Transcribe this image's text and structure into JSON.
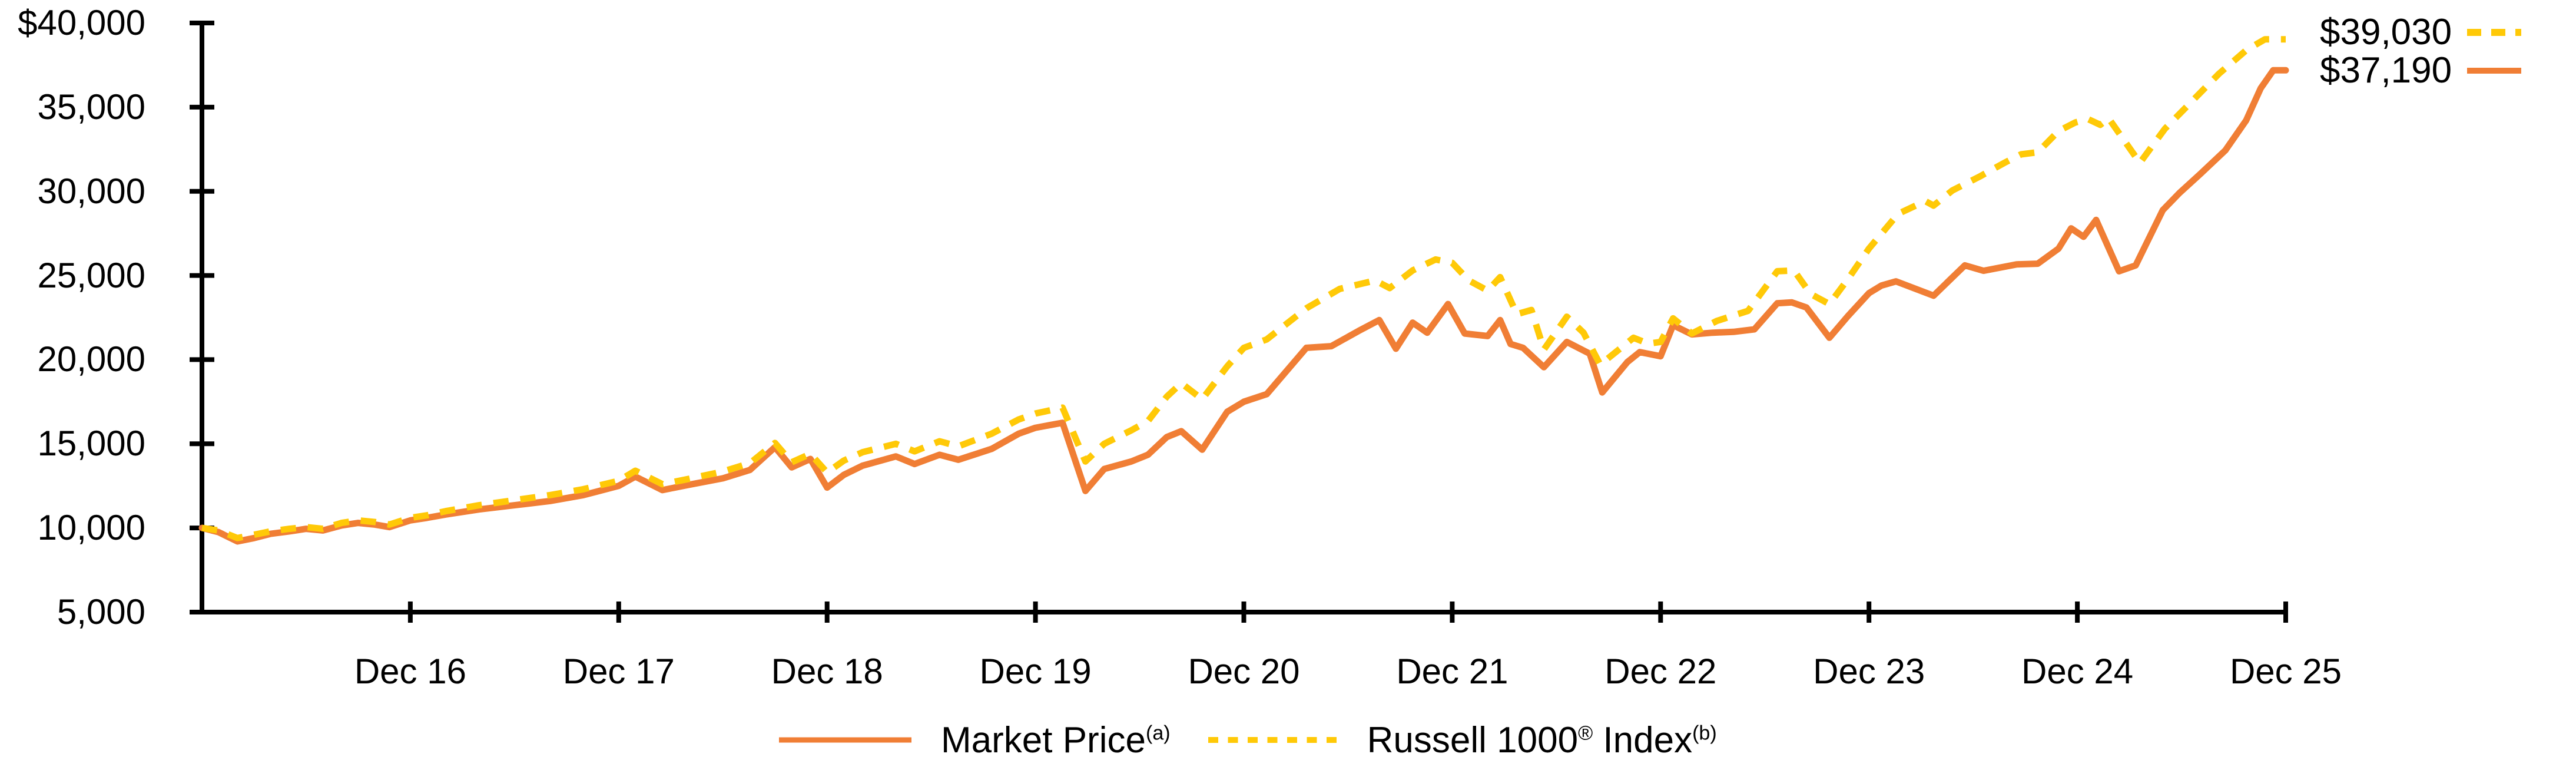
{
  "chart_data": {
    "type": "line",
    "title": "",
    "xlabel": "",
    "ylabel": "",
    "ylim": [
      5000,
      40000
    ],
    "x_range_years": [
      0,
      10
    ],
    "grid": "off",
    "legend_position": "bottom-center",
    "axis_color": "#000000",
    "y_ticks": [
      {
        "value": 40000,
        "label": "$40,000"
      },
      {
        "value": 35000,
        "label": "35,000"
      },
      {
        "value": 30000,
        "label": "30,000"
      },
      {
        "value": 25000,
        "label": "25,000"
      },
      {
        "value": 20000,
        "label": "20,000"
      },
      {
        "value": 15000,
        "label": "15,000"
      },
      {
        "value": 10000,
        "label": "10,000"
      },
      {
        "value": 5000,
        "label": "5,000"
      }
    ],
    "x_ticks": [
      {
        "t": 1,
        "label": "Dec 16"
      },
      {
        "t": 2,
        "label": "Dec 17"
      },
      {
        "t": 3,
        "label": "Dec 18"
      },
      {
        "t": 4,
        "label": "Dec 19"
      },
      {
        "t": 5,
        "label": "Dec 20"
      },
      {
        "t": 6,
        "label": "Dec 21"
      },
      {
        "t": 7,
        "label": "Dec 22"
      },
      {
        "t": 8,
        "label": "Dec 23"
      },
      {
        "t": 9,
        "label": "Dec 24"
      },
      {
        "t": 10,
        "label": "Dec 25"
      }
    ],
    "series": [
      {
        "name": "Market Price",
        "name_base": "Market Price",
        "superscript": "(a)",
        "color": "#F07E35",
        "style": "solid",
        "end_label": "$37,190",
        "end_value": 37190,
        "points": [
          [
            0,
            10000
          ],
          [
            0.08,
            9750
          ],
          [
            0.17,
            9200
          ],
          [
            0.25,
            9400
          ],
          [
            0.33,
            9650
          ],
          [
            0.42,
            9800
          ],
          [
            0.5,
            9950
          ],
          [
            0.58,
            9850
          ],
          [
            0.67,
            10150
          ],
          [
            0.75,
            10300
          ],
          [
            0.83,
            10200
          ],
          [
            0.9,
            10050
          ],
          [
            1,
            10450
          ],
          [
            1.08,
            10600
          ],
          [
            1.17,
            10800
          ],
          [
            1.33,
            11100
          ],
          [
            1.5,
            11350
          ],
          [
            1.67,
            11600
          ],
          [
            1.83,
            11950
          ],
          [
            2,
            12500
          ],
          [
            2.08,
            13050
          ],
          [
            2.21,
            12250
          ],
          [
            2.33,
            12550
          ],
          [
            2.5,
            12950
          ],
          [
            2.63,
            13450
          ],
          [
            2.75,
            14800
          ],
          [
            2.83,
            13600
          ],
          [
            2.92,
            14100
          ],
          [
            3,
            12400
          ],
          [
            3.08,
            13150
          ],
          [
            3.17,
            13700
          ],
          [
            3.33,
            14250
          ],
          [
            3.42,
            13800
          ],
          [
            3.54,
            14350
          ],
          [
            3.63,
            14050
          ],
          [
            3.79,
            14700
          ],
          [
            3.92,
            15600
          ],
          [
            4,
            15950
          ],
          [
            4.13,
            16250
          ],
          [
            4.24,
            12200
          ],
          [
            4.33,
            13500
          ],
          [
            4.46,
            13950
          ],
          [
            4.54,
            14350
          ],
          [
            4.63,
            15400
          ],
          [
            4.7,
            15750
          ],
          [
            4.8,
            14650
          ],
          [
            4.92,
            16900
          ],
          [
            5,
            17500
          ],
          [
            5.11,
            17950
          ],
          [
            5.3,
            20700
          ],
          [
            5.42,
            20800
          ],
          [
            5.55,
            21700
          ],
          [
            5.65,
            22350
          ],
          [
            5.73,
            20650
          ],
          [
            5.81,
            22200
          ],
          [
            5.88,
            21600
          ],
          [
            5.98,
            23300
          ],
          [
            6.06,
            21550
          ],
          [
            6.17,
            21400
          ],
          [
            6.23,
            22350
          ],
          [
            6.28,
            20930
          ],
          [
            6.34,
            20700
          ],
          [
            6.44,
            19550
          ],
          [
            6.55,
            21050
          ],
          [
            6.66,
            20350
          ],
          [
            6.72,
            18050
          ],
          [
            6.84,
            19850
          ],
          [
            6.9,
            20450
          ],
          [
            7,
            20200
          ],
          [
            7.06,
            22050
          ],
          [
            7.15,
            21500
          ],
          [
            7.25,
            21600
          ],
          [
            7.35,
            21650
          ],
          [
            7.45,
            21800
          ],
          [
            7.56,
            23350
          ],
          [
            7.63,
            23400
          ],
          [
            7.7,
            23100
          ],
          [
            7.81,
            21300
          ],
          [
            7.9,
            22600
          ],
          [
            8,
            23950
          ],
          [
            8.06,
            24400
          ],
          [
            8.13,
            24650
          ],
          [
            8.31,
            23800
          ],
          [
            8.46,
            25600
          ],
          [
            8.55,
            25280
          ],
          [
            8.71,
            25660
          ],
          [
            8.81,
            25700
          ],
          [
            8.91,
            26600
          ],
          [
            8.97,
            27800
          ],
          [
            9.03,
            27300
          ],
          [
            9.09,
            28300
          ],
          [
            9.2,
            25250
          ],
          [
            9.28,
            25600
          ],
          [
            9.41,
            28880
          ],
          [
            9.49,
            29900
          ],
          [
            9.59,
            31030
          ],
          [
            9.71,
            32430
          ],
          [
            9.81,
            34210
          ],
          [
            9.88,
            36120
          ],
          [
            9.94,
            37190
          ],
          [
            10,
            37190
          ]
        ]
      },
      {
        "name": "Russell 1000® Index",
        "name_base": "Russell 1000",
        "name_reg": "®",
        "name_rest": " Index",
        "superscript": "(b)",
        "color": "#FFC907",
        "style": "dashed",
        "end_label": "$39,030",
        "end_value": 39030,
        "points": [
          [
            0,
            10000
          ],
          [
            0.08,
            9850
          ],
          [
            0.17,
            9400
          ],
          [
            0.25,
            9600
          ],
          [
            0.33,
            9800
          ],
          [
            0.42,
            9950
          ],
          [
            0.5,
            10050
          ],
          [
            0.58,
            9950
          ],
          [
            0.67,
            10300
          ],
          [
            0.75,
            10450
          ],
          [
            0.83,
            10350
          ],
          [
            0.9,
            10200
          ],
          [
            1,
            10600
          ],
          [
            1.08,
            10750
          ],
          [
            1.17,
            11000
          ],
          [
            1.33,
            11350
          ],
          [
            1.5,
            11650
          ],
          [
            1.67,
            11950
          ],
          [
            1.83,
            12300
          ],
          [
            2,
            12800
          ],
          [
            2.08,
            13400
          ],
          [
            2.21,
            12600
          ],
          [
            2.33,
            12900
          ],
          [
            2.5,
            13350
          ],
          [
            2.63,
            13850
          ],
          [
            2.75,
            15050
          ],
          [
            2.83,
            13900
          ],
          [
            2.92,
            14400
          ],
          [
            3,
            13300
          ],
          [
            3.08,
            14000
          ],
          [
            3.17,
            14500
          ],
          [
            3.33,
            15000
          ],
          [
            3.42,
            14550
          ],
          [
            3.54,
            15150
          ],
          [
            3.63,
            14850
          ],
          [
            3.79,
            15600
          ],
          [
            3.92,
            16450
          ],
          [
            4,
            16800
          ],
          [
            4.13,
            17150
          ],
          [
            4.24,
            13950
          ],
          [
            4.33,
            15000
          ],
          [
            4.46,
            15800
          ],
          [
            4.54,
            16350
          ],
          [
            4.63,
            17800
          ],
          [
            4.7,
            18600
          ],
          [
            4.8,
            17650
          ],
          [
            4.92,
            19600
          ],
          [
            5,
            20700
          ],
          [
            5.11,
            21200
          ],
          [
            5.3,
            23050
          ],
          [
            5.46,
            24200
          ],
          [
            5.63,
            24700
          ],
          [
            5.7,
            24250
          ],
          [
            5.81,
            25300
          ],
          [
            5.92,
            25950
          ],
          [
            6,
            25750
          ],
          [
            6.08,
            24700
          ],
          [
            6.17,
            24100
          ],
          [
            6.23,
            24900
          ],
          [
            6.31,
            22700
          ],
          [
            6.38,
            22950
          ],
          [
            6.44,
            20600
          ],
          [
            6.55,
            22550
          ],
          [
            6.63,
            21600
          ],
          [
            6.71,
            19700
          ],
          [
            6.87,
            21300
          ],
          [
            6.94,
            20950
          ],
          [
            7,
            21050
          ],
          [
            7.06,
            22450
          ],
          [
            7.15,
            21550
          ],
          [
            7.27,
            22300
          ],
          [
            7.42,
            22900
          ],
          [
            7.56,
            25250
          ],
          [
            7.64,
            25300
          ],
          [
            7.72,
            23900
          ],
          [
            7.81,
            23300
          ],
          [
            7.9,
            24800
          ],
          [
            8,
            26600
          ],
          [
            8.14,
            28660
          ],
          [
            8.27,
            29420
          ],
          [
            8.31,
            29150
          ],
          [
            8.4,
            30050
          ],
          [
            8.53,
            30870
          ],
          [
            8.65,
            31690
          ],
          [
            8.73,
            32195
          ],
          [
            8.81,
            32320
          ],
          [
            8.91,
            33580
          ],
          [
            8.99,
            34090
          ],
          [
            9.05,
            34300
          ],
          [
            9.11,
            33950
          ],
          [
            9.15,
            34340
          ],
          [
            9.3,
            31690
          ],
          [
            9.42,
            33710
          ],
          [
            9.55,
            35350
          ],
          [
            9.68,
            36990
          ],
          [
            9.81,
            38380
          ],
          [
            9.9,
            39030
          ],
          [
            10,
            39030
          ]
        ]
      }
    ]
  }
}
